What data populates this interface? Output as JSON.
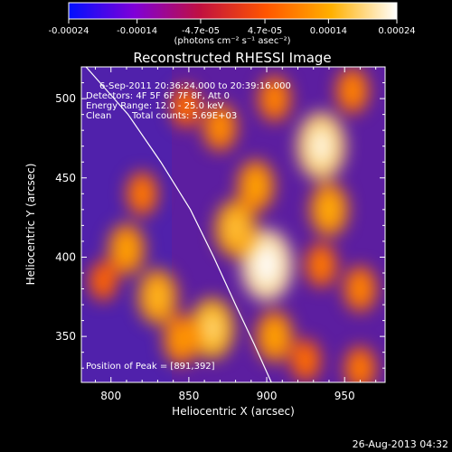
{
  "chart_data": {
    "type": "heatmap",
    "title": "Reconstructed RHESSI Image",
    "xlabel": "Heliocentric X (arcsec)",
    "ylabel": "Heliocentric Y (arcsec)",
    "xlim": [
      781,
      976
    ],
    "ylim": [
      321,
      520
    ],
    "x_ticks": [
      "800",
      "850",
      "900",
      "950"
    ],
    "y_ticks": [
      "350",
      "400",
      "450",
      "500"
    ],
    "colorbar": {
      "range": [
        -0.00024,
        0.00024
      ],
      "tick_labels": [
        "-0.00024",
        "-0.00014",
        "-4.7e-05",
        "4.7e-05",
        "0.00014",
        "0.00024"
      ],
      "units_label": "(photons cm⁻² s⁻¹ asec⁻²)",
      "colormap": [
        "#0010ff",
        "#7f00d8",
        "#c01040",
        "#ff5500",
        "#ffb000",
        "#ffffff"
      ]
    },
    "annotations": {
      "time_range": "6-Sep-2011 20:36:24.000 to 20:39:16.000",
      "detectors": "Detectors: 4F 5F 6F 7F 8F, Att 0",
      "energy_range": "Energy Range: 12.0 - 25.0 keV",
      "algorithm": "Clean",
      "total_counts": "Total counts: 5.69E+03",
      "peak_position": "Position of Peak = [891,392]"
    },
    "limb_curve": [
      [
        784,
        520
      ],
      [
        811,
        490
      ],
      [
        832,
        460
      ],
      [
        851,
        430
      ],
      [
        866,
        400
      ],
      [
        880,
        370
      ],
      [
        892,
        345
      ],
      [
        903,
        321
      ]
    ],
    "peak": [
      891,
      392
    ],
    "emission_sources": [
      {
        "x": 935,
        "y": 470,
        "value": 0.00022
      },
      {
        "x": 940,
        "y": 430,
        "value": 0.00014
      },
      {
        "x": 893,
        "y": 445,
        "value": 0.00013
      },
      {
        "x": 900,
        "y": 395,
        "value": 0.00024
      },
      {
        "x": 880,
        "y": 418,
        "value": 0.00016
      },
      {
        "x": 865,
        "y": 355,
        "value": 0.00018
      },
      {
        "x": 845,
        "y": 348,
        "value": 0.00012
      },
      {
        "x": 905,
        "y": 350,
        "value": 0.00013
      },
      {
        "x": 830,
        "y": 375,
        "value": 0.00015
      },
      {
        "x": 810,
        "y": 405,
        "value": 0.00013
      },
      {
        "x": 870,
        "y": 482,
        "value": 0.00011
      },
      {
        "x": 848,
        "y": 495,
        "value": 8e-05
      },
      {
        "x": 905,
        "y": 500,
        "value": 0.0001
      },
      {
        "x": 960,
        "y": 380,
        "value": 0.0001
      },
      {
        "x": 935,
        "y": 395,
        "value": 9e-05
      },
      {
        "x": 820,
        "y": 440,
        "value": 9e-05
      },
      {
        "x": 960,
        "y": 330,
        "value": 9e-05
      },
      {
        "x": 925,
        "y": 335,
        "value": 8e-05
      },
      {
        "x": 795,
        "y": 385,
        "value": 7e-05
      },
      {
        "x": 955,
        "y": 505,
        "value": 0.0001
      }
    ]
  },
  "footer": {
    "date_stamp": "26-Aug-2013 04:32"
  }
}
